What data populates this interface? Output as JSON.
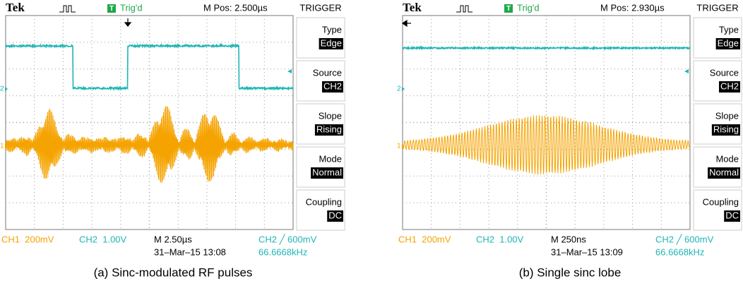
{
  "panels": [
    {
      "brand": "Tek",
      "trigger_icon": "T",
      "trigger_state": "Trig'd",
      "m_pos": "M Pos: 2.500µs",
      "menu_title": "TRIGGER",
      "menu": [
        {
          "label": "Type",
          "value": "Edge"
        },
        {
          "label": "Source",
          "value": "CH2"
        },
        {
          "label": "Slope",
          "value": "Rising"
        },
        {
          "label": "Mode",
          "value": "Normal"
        },
        {
          "label": "Coupling",
          "value": "DC"
        }
      ],
      "ch2_marker": "2",
      "ch1_marker": "1",
      "ch1_scale": "CH1  200mV",
      "ch2_scale": "CH2  1.00V",
      "timebase": "M 2.50µs",
      "trigger_level": "CH2 ╱ 600mV",
      "datetime": "31–Mar–15 13:08",
      "frequency": "66.6668kHz",
      "caption": "(a) Sinc-modulated RF pulses"
    },
    {
      "brand": "Tek",
      "trigger_icon": "T",
      "trigger_state": "Trig'd",
      "m_pos": "M Pos: 2.930µs",
      "menu_title": "TRIGGER",
      "menu": [
        {
          "label": "Type",
          "value": "Edge"
        },
        {
          "label": "Source",
          "value": "CH2"
        },
        {
          "label": "Slope",
          "value": "Rising"
        },
        {
          "label": "Mode",
          "value": "Normal"
        },
        {
          "label": "Coupling",
          "value": "DC"
        }
      ],
      "ch2_marker": "2",
      "ch1_marker": "1",
      "ch1_scale": "CH1  200mV",
      "ch2_scale": "CH2  1.00V",
      "timebase": "M 250ns",
      "trigger_level": "CH2 ╱ 600mV",
      "datetime": "31–Mar–15 13:09",
      "frequency": "66.6668kHz",
      "caption": "(b) Single sinc lobe"
    }
  ]
}
